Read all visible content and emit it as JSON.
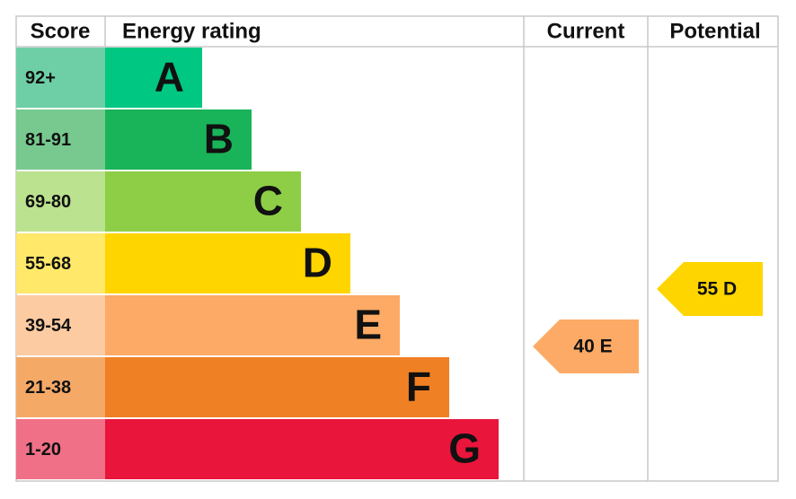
{
  "header": {
    "score": "Score",
    "energy_rating": "Energy rating",
    "current": "Current",
    "potential": "Potential"
  },
  "ratings": [
    {
      "score": "92+",
      "letter": "A",
      "color": "#00c781",
      "score_color": "#6ecfa6"
    },
    {
      "score": "81-91",
      "letter": "B",
      "color": "#19b459",
      "score_color": "#77c98f"
    },
    {
      "score": "69-80",
      "letter": "C",
      "color": "#8dce46",
      "score_color": "#bbe28f"
    },
    {
      "score": "55-68",
      "letter": "D",
      "color": "#ffd500",
      "score_color": "#ffe86a"
    },
    {
      "score": "39-54",
      "letter": "E",
      "color": "#fcaa65",
      "score_color": "#fdcba2"
    },
    {
      "score": "21-38",
      "letter": "F",
      "color": "#ef8023",
      "score_color": "#f4a967"
    },
    {
      "score": "1-20",
      "letter": "G",
      "color": "#e9153b",
      "score_color": "#f07088"
    }
  ],
  "current": {
    "label": "40 E",
    "color": "#fcaa65"
  },
  "potential": {
    "label": "55 D",
    "color": "#ffd500"
  }
}
